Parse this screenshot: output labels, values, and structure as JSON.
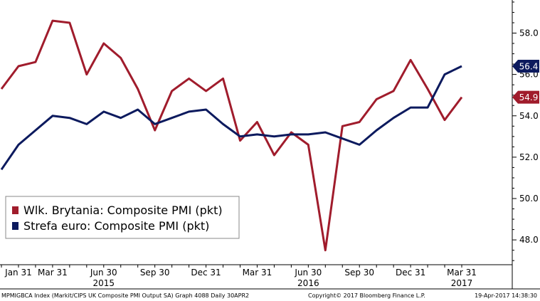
{
  "chart_data": {
    "type": "line",
    "title": "",
    "xlabel": "",
    "ylabel": "",
    "ylim": [
      46.8,
      59.6
    ],
    "yticks": [
      "58.0",
      "56.0",
      "54.0",
      "52.0",
      "50.0",
      "48.0"
    ],
    "ytick_values": [
      58,
      56,
      54,
      52,
      50,
      48
    ],
    "x_categories": [
      "Dec 2014",
      "Jan 2015",
      "Feb 2015",
      "Mar 2015",
      "Apr 2015",
      "May 2015",
      "Jun 2015",
      "Jul 2015",
      "Aug 2015",
      "Sep 2015",
      "Oct 2015",
      "Nov 2015",
      "Dec 2015",
      "Jan 2016",
      "Feb 2016",
      "Mar 2016",
      "Apr 2016",
      "May 2016",
      "Jun 2016",
      "Jul 2016",
      "Aug 2016",
      "Sep 2016",
      "Oct 2016",
      "Nov 2016",
      "Dec 2016",
      "Jan 2017",
      "Feb 2017",
      "Mar 2017"
    ],
    "x_tick_labels": [
      {
        "label": "Jan 31",
        "index": 1
      },
      {
        "label": "Mar 31",
        "index": 3
      },
      {
        "label": "Jun 30",
        "index": 6
      },
      {
        "label": "Sep 30",
        "index": 9
      },
      {
        "label": "Dec 31",
        "index": 12
      },
      {
        "label": "Mar 31",
        "index": 15
      },
      {
        "label": "Jun 30",
        "index": 18
      },
      {
        "label": "Sep 30",
        "index": 21
      },
      {
        "label": "Dec 31",
        "index": 24
      },
      {
        "label": "Mar 31",
        "index": 27
      }
    ],
    "year_labels": [
      {
        "label": "2015",
        "index": 6
      },
      {
        "label": "2016",
        "index": 18
      },
      {
        "label": "2017",
        "index": 27
      }
    ],
    "series": [
      {
        "name": "Wlk. Brytania: Composite PMI (pkt)",
        "color": "#a01c2c",
        "last_value_label": "54.9",
        "values": [
          55.3,
          56.4,
          56.6,
          58.6,
          58.5,
          56.0,
          57.5,
          56.8,
          55.3,
          53.3,
          55.2,
          55.8,
          55.2,
          55.8,
          52.8,
          53.7,
          52.1,
          53.2,
          52.6,
          47.5,
          53.5,
          53.7,
          54.8,
          55.2,
          56.7,
          55.3,
          53.8,
          54.9
        ]
      },
      {
        "name": "Strefa euro: Composite PMI (pkt)",
        "color": "#0c1a5e",
        "last_value_label": "56.4",
        "values": [
          51.4,
          52.6,
          53.3,
          54.0,
          53.9,
          53.6,
          54.2,
          53.9,
          54.3,
          53.6,
          53.9,
          54.2,
          54.3,
          53.6,
          53.0,
          53.1,
          53.0,
          53.1,
          53.1,
          53.2,
          52.9,
          52.6,
          53.3,
          53.9,
          54.4,
          54.4,
          56.0,
          56.4
        ]
      }
    ],
    "grid": false,
    "legend_placement": "bottom-left"
  },
  "footer": {
    "left": "MPMIGBCA Index (Markit/CIPS UK Composite PMI Output SA) Graph 4088  Daily 30APR2",
    "center": "Copyright© 2017 Bloomberg Finance L.P.",
    "right": "19-Apr-2017 14:38:30"
  }
}
